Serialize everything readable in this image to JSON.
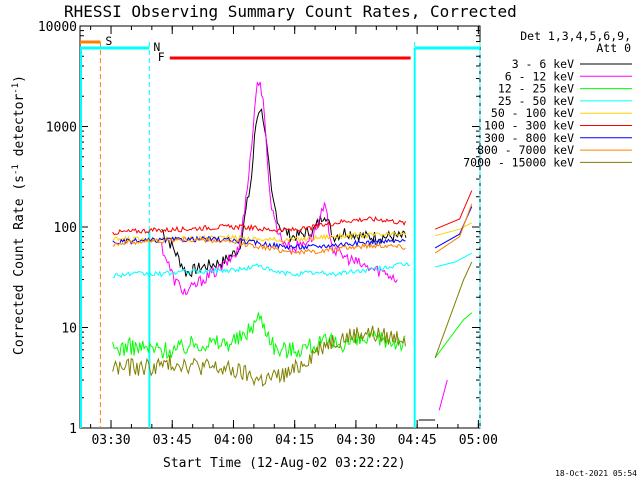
{
  "chart_data": {
    "type": "line",
    "title": "RHESSI Observing Summary Count Rates, Corrected",
    "xlabel": "Start Time (12-Aug-02 03:22:22)",
    "ylabel_main": "Corrected Count Rate (s",
    "ylabel_sup1": "-1",
    "ylabel_mid": " detector",
    "ylabel_sup2": "-1",
    "ylabel_end": ")",
    "yscale": "log",
    "ylim": [
      1,
      10000
    ],
    "xlim_min": [
      0,
      98
    ],
    "yticks": [
      {
        "v": 1,
        "label": "1"
      },
      {
        "v": 10,
        "label": "10"
      },
      {
        "v": 100,
        "label": "100"
      },
      {
        "v": 1000,
        "label": "1000"
      },
      {
        "v": 10000,
        "label": "10000"
      }
    ],
    "xticks": [
      {
        "m": 7.6,
        "label": "03:30"
      },
      {
        "m": 22.6,
        "label": "03:45"
      },
      {
        "m": 37.6,
        "label": "04:00"
      },
      {
        "m": 52.6,
        "label": "04:15"
      },
      {
        "m": 67.6,
        "label": "04:30"
      },
      {
        "m": 82.6,
        "label": "04:45"
      },
      {
        "m": 97.6,
        "label": "05:00"
      }
    ],
    "legend_header": [
      "Det 1,3,4,5,6,9,",
      "Att 0"
    ],
    "series": [
      {
        "name": "3 - 6 keV",
        "color": "#000000",
        "points": [
          [
            20,
            95
          ],
          [
            23,
            60
          ],
          [
            26,
            35
          ],
          [
            30,
            40
          ],
          [
            35,
            45
          ],
          [
            39,
            60
          ],
          [
            40,
            100
          ],
          [
            42,
            300
          ],
          [
            43,
            1000
          ],
          [
            44,
            1600
          ],
          [
            45,
            1200
          ],
          [
            46,
            500
          ],
          [
            47,
            200
          ],
          [
            49,
            100
          ],
          [
            52,
            80
          ],
          [
            57,
            90
          ],
          [
            60,
            140
          ],
          [
            62,
            80
          ],
          [
            65,
            90
          ],
          [
            70,
            80
          ],
          [
            75,
            80
          ],
          [
            80,
            80
          ]
        ],
        "tail": [
          [
            83,
            1.2
          ],
          [
            87,
            1.2
          ]
        ]
      },
      {
        "name": "6 - 12 keV",
        "color": "#ff00ff",
        "points": [
          [
            20,
            65
          ],
          [
            23,
            30
          ],
          [
            26,
            22
          ],
          [
            30,
            30
          ],
          [
            35,
            40
          ],
          [
            39,
            60
          ],
          [
            40,
            120
          ],
          [
            42,
            600
          ],
          [
            43,
            2000
          ],
          [
            44,
            3200
          ],
          [
            45,
            1500
          ],
          [
            46,
            400
          ],
          [
            47,
            150
          ],
          [
            49,
            80
          ],
          [
            52,
            60
          ],
          [
            57,
            80
          ],
          [
            60,
            160
          ],
          [
            62,
            60
          ],
          [
            65,
            50
          ],
          [
            70,
            40
          ],
          [
            75,
            35
          ],
          [
            78,
            30
          ]
        ],
        "tail": [
          [
            88,
            1.5
          ],
          [
            90,
            3
          ]
        ]
      },
      {
        "name": "12 - 25 keV",
        "color": "#00ff00",
        "points": [
          [
            8,
            6
          ],
          [
            12,
            6.5
          ],
          [
            16,
            6.2
          ],
          [
            20,
            6
          ],
          [
            24,
            6
          ],
          [
            28,
            7
          ],
          [
            32,
            7
          ],
          [
            36,
            7
          ],
          [
            40,
            8
          ],
          [
            44,
            13
          ],
          [
            46,
            9
          ],
          [
            48,
            6
          ],
          [
            52,
            6
          ],
          [
            56,
            6.5
          ],
          [
            60,
            7
          ],
          [
            65,
            7
          ],
          [
            70,
            7.5
          ],
          [
            75,
            7.5
          ],
          [
            80,
            7
          ]
        ],
        "tail": [
          [
            87,
            5
          ],
          [
            94,
            12
          ],
          [
            96,
            14
          ]
        ]
      },
      {
        "name": "25 - 50 keV",
        "color": "#00ffff",
        "points": [
          [
            8,
            33
          ],
          [
            12,
            34
          ],
          [
            16,
            34
          ],
          [
            20,
            34
          ],
          [
            25,
            36
          ],
          [
            30,
            36
          ],
          [
            35,
            37
          ],
          [
            40,
            38
          ],
          [
            44,
            42
          ],
          [
            47,
            36
          ],
          [
            52,
            34
          ],
          [
            57,
            35
          ],
          [
            62,
            34
          ],
          [
            67,
            36
          ],
          [
            72,
            38
          ],
          [
            77,
            41
          ],
          [
            81,
            43
          ]
        ],
        "tail": [
          [
            87,
            40
          ],
          [
            92,
            45
          ],
          [
            96,
            55
          ]
        ]
      },
      {
        "name": "50 - 100 keV",
        "color": "#ffd000",
        "points": [
          [
            8,
            75
          ],
          [
            12,
            76
          ],
          [
            16,
            75
          ],
          [
            20,
            75
          ],
          [
            25,
            77
          ],
          [
            30,
            78
          ],
          [
            35,
            79
          ],
          [
            40,
            77
          ],
          [
            45,
            75
          ],
          [
            50,
            74
          ],
          [
            55,
            76
          ],
          [
            60,
            80
          ],
          [
            65,
            82
          ],
          [
            70,
            83
          ],
          [
            75,
            84
          ],
          [
            80,
            85
          ]
        ],
        "tail": [
          [
            87,
            82
          ],
          [
            93,
            95
          ],
          [
            96,
            110
          ]
        ]
      },
      {
        "name": "100 - 300 keV",
        "color": "#ff0000",
        "points": [
          [
            8,
            88
          ],
          [
            12,
            90
          ],
          [
            16,
            92
          ],
          [
            20,
            93
          ],
          [
            25,
            95
          ],
          [
            30,
            98
          ],
          [
            35,
            100
          ],
          [
            40,
            100
          ],
          [
            45,
            95
          ],
          [
            50,
            93
          ],
          [
            55,
            95
          ],
          [
            60,
            105
          ],
          [
            65,
            115
          ],
          [
            70,
            120
          ],
          [
            75,
            118
          ],
          [
            80,
            108
          ]
        ],
        "tail": [
          [
            87,
            95
          ],
          [
            93,
            120
          ],
          [
            96,
            230
          ]
        ]
      },
      {
        "name": "300 - 800 keV",
        "color": "#0000ff",
        "points": [
          [
            8,
            70
          ],
          [
            12,
            72
          ],
          [
            16,
            73
          ],
          [
            20,
            74
          ],
          [
            25,
            75
          ],
          [
            30,
            76
          ],
          [
            35,
            75
          ],
          [
            40,
            72
          ],
          [
            45,
            68
          ],
          [
            50,
            64
          ],
          [
            55,
            63
          ],
          [
            60,
            65
          ],
          [
            65,
            68
          ],
          [
            70,
            70
          ],
          [
            75,
            72
          ],
          [
            80,
            72
          ]
        ],
        "tail": [
          [
            87,
            62
          ],
          [
            93,
            85
          ],
          [
            96,
            160
          ]
        ]
      },
      {
        "name": "800 - 7000 keV",
        "color": "#ff8000",
        "points": [
          [
            8,
            68
          ],
          [
            12,
            70
          ],
          [
            16,
            72
          ],
          [
            20,
            73
          ],
          [
            25,
            75
          ],
          [
            30,
            74
          ],
          [
            35,
            72
          ],
          [
            40,
            68
          ],
          [
            45,
            63
          ],
          [
            50,
            58
          ],
          [
            55,
            56
          ],
          [
            60,
            58
          ],
          [
            65,
            62
          ],
          [
            70,
            65
          ],
          [
            75,
            66
          ],
          [
            80,
            63
          ]
        ],
        "tail": [
          [
            87,
            55
          ],
          [
            93,
            80
          ],
          [
            96,
            170
          ]
        ]
      },
      {
        "name": "7000 - 15000 keV",
        "color": "#808000",
        "points": [
          [
            8,
            4
          ],
          [
            12,
            4
          ],
          [
            16,
            4
          ],
          [
            20,
            4.2
          ],
          [
            24,
            4.5
          ],
          [
            28,
            4.2
          ],
          [
            32,
            4
          ],
          [
            36,
            3.8
          ],
          [
            40,
            3.5
          ],
          [
            44,
            3
          ],
          [
            48,
            3.2
          ],
          [
            52,
            3.6
          ],
          [
            56,
            5
          ],
          [
            60,
            7
          ],
          [
            65,
            8
          ],
          [
            70,
            9
          ],
          [
            75,
            8
          ],
          [
            80,
            8
          ]
        ],
        "tail": [
          [
            87,
            5
          ],
          [
            94,
            30
          ],
          [
            96,
            45
          ]
        ]
      }
    ],
    "flag_S": {
      "label": "S",
      "color": "#ff8000",
      "x_min": [
        0,
        5
      ]
    },
    "flag_N": {
      "label": "N",
      "color": "#00ffff",
      "x_min": [
        0,
        17,
        82,
        98
      ]
    },
    "flag_F": {
      "label": "F",
      "color": "#ff0000",
      "x_min": [
        22,
        81
      ]
    },
    "timestamp": "18-Oct-2021 05:54"
  }
}
